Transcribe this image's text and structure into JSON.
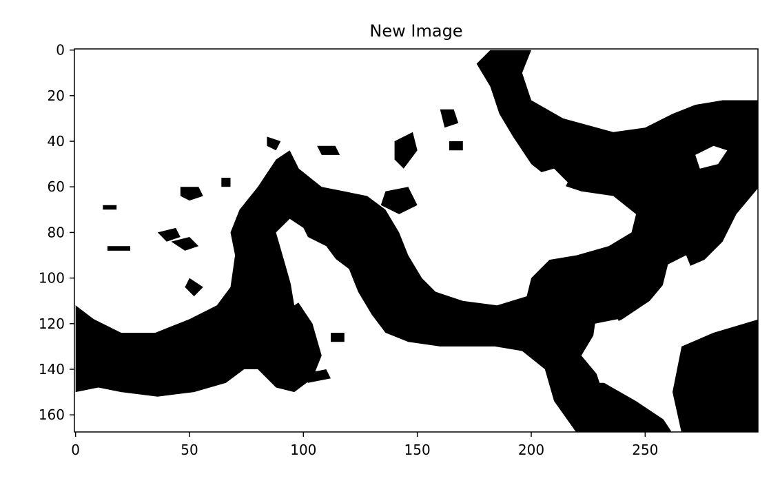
{
  "chart_data": {
    "type": "heatmap",
    "title": "New Image",
    "xlabel": "",
    "ylabel": "",
    "colormap": [
      "#000000",
      "#ffffff"
    ],
    "xlim": [
      -0.5,
      299.5
    ],
    "ylim": [
      167.5,
      -0.5
    ],
    "xticks": [
      0,
      50,
      100,
      150,
      200,
      250
    ],
    "yticks": [
      0,
      20,
      40,
      60,
      80,
      100,
      120,
      140,
      160
    ],
    "grid": false,
    "black_regions": [
      {
        "name": "left-lower-band",
        "points": [
          [
            0,
            112
          ],
          [
            8,
            118
          ],
          [
            20,
            124
          ],
          [
            35,
            124
          ],
          [
            50,
            118
          ],
          [
            62,
            112
          ],
          [
            68,
            104
          ],
          [
            70,
            90
          ],
          [
            68,
            80
          ],
          [
            72,
            70
          ],
          [
            80,
            60
          ],
          [
            88,
            48
          ],
          [
            94,
            44
          ],
          [
            98,
            52
          ],
          [
            108,
            60
          ],
          [
            118,
            62
          ],
          [
            128,
            64
          ],
          [
            136,
            70
          ],
          [
            142,
            80
          ],
          [
            146,
            90
          ],
          [
            152,
            100
          ],
          [
            158,
            106
          ],
          [
            170,
            110
          ],
          [
            185,
            112
          ],
          [
            198,
            108
          ],
          [
            200,
            100
          ],
          [
            208,
            92
          ],
          [
            220,
            90
          ],
          [
            234,
            86
          ],
          [
            244,
            80
          ],
          [
            246,
            72
          ],
          [
            236,
            64
          ],
          [
            222,
            62
          ],
          [
            210,
            58
          ],
          [
            200,
            50
          ],
          [
            192,
            38
          ],
          [
            186,
            28
          ],
          [
            182,
            16
          ],
          [
            176,
            6
          ],
          [
            182,
            0
          ],
          [
            200,
            0
          ],
          [
            196,
            10
          ],
          [
            200,
            22
          ],
          [
            214,
            30
          ],
          [
            236,
            36
          ],
          [
            250,
            34
          ],
          [
            262,
            28
          ],
          [
            272,
            24
          ],
          [
            284,
            22
          ],
          [
            300,
            22
          ],
          [
            300,
            60
          ],
          [
            290,
            72
          ],
          [
            284,
            84
          ],
          [
            276,
            92
          ],
          [
            262,
            98
          ],
          [
            252,
            110
          ],
          [
            240,
            118
          ],
          [
            228,
            124
          ],
          [
            222,
            134
          ],
          [
            232,
            146
          ],
          [
            246,
            154
          ],
          [
            258,
            162
          ],
          [
            262,
            168
          ],
          [
            220,
            168
          ],
          [
            210,
            154
          ],
          [
            206,
            140
          ],
          [
            196,
            132
          ],
          [
            184,
            130
          ],
          [
            172,
            130
          ],
          [
            160,
            130
          ],
          [
            146,
            128
          ],
          [
            136,
            124
          ],
          [
            130,
            116
          ],
          [
            124,
            106
          ],
          [
            120,
            96
          ],
          [
            112,
            90
          ],
          [
            104,
            86
          ],
          [
            100,
            78
          ],
          [
            94,
            74
          ],
          [
            88,
            80
          ],
          [
            92,
            94
          ],
          [
            96,
            108
          ],
          [
            104,
            120
          ],
          [
            108,
            134
          ],
          [
            104,
            144
          ],
          [
            96,
            150
          ],
          [
            88,
            148
          ],
          [
            80,
            140
          ],
          [
            74,
            140
          ],
          [
            66,
            146
          ],
          [
            52,
            150
          ],
          [
            36,
            152
          ],
          [
            20,
            150
          ],
          [
            10,
            148
          ],
          [
            0,
            150
          ]
        ]
      },
      {
        "name": "right-lower-block",
        "points": [
          [
            266,
            130
          ],
          [
            280,
            124
          ],
          [
            300,
            118
          ],
          [
            300,
            168
          ],
          [
            266,
            168
          ],
          [
            262,
            150
          ]
        ]
      },
      {
        "name": "spot-a",
        "points": [
          [
            46,
            60
          ],
          [
            54,
            60
          ],
          [
            56,
            64
          ],
          [
            50,
            66
          ],
          [
            46,
            64
          ]
        ]
      },
      {
        "name": "spot-b",
        "points": [
          [
            36,
            80
          ],
          [
            44,
            78
          ],
          [
            46,
            82
          ],
          [
            40,
            84
          ]
        ]
      },
      {
        "name": "spot-c",
        "points": [
          [
            42,
            84
          ],
          [
            50,
            82
          ],
          [
            54,
            86
          ],
          [
            48,
            88
          ]
        ]
      },
      {
        "name": "spot-d",
        "points": [
          [
            84,
            38
          ],
          [
            90,
            40
          ],
          [
            88,
            44
          ],
          [
            84,
            42
          ]
        ]
      },
      {
        "name": "spot-e",
        "points": [
          [
            106,
            42
          ],
          [
            114,
            42
          ],
          [
            116,
            46
          ],
          [
            108,
            46
          ]
        ]
      },
      {
        "name": "spot-f",
        "points": [
          [
            140,
            40
          ],
          [
            148,
            36
          ],
          [
            150,
            44
          ],
          [
            144,
            52
          ],
          [
            140,
            48
          ]
        ]
      },
      {
        "name": "spot-g",
        "points": [
          [
            136,
            62
          ],
          [
            146,
            60
          ],
          [
            150,
            68
          ],
          [
            142,
            72
          ],
          [
            134,
            68
          ]
        ]
      },
      {
        "name": "spot-h",
        "points": [
          [
            160,
            26
          ],
          [
            166,
            26
          ],
          [
            168,
            32
          ],
          [
            162,
            34
          ]
        ]
      },
      {
        "name": "spot-i",
        "points": [
          [
            164,
            40
          ],
          [
            170,
            40
          ],
          [
            170,
            44
          ],
          [
            164,
            44
          ]
        ]
      },
      {
        "name": "spot-j",
        "points": [
          [
            50,
            100
          ],
          [
            56,
            104
          ],
          [
            52,
            108
          ],
          [
            48,
            104
          ]
        ]
      },
      {
        "name": "spot-k",
        "points": [
          [
            100,
            142
          ],
          [
            110,
            140
          ],
          [
            112,
            144
          ],
          [
            102,
            146
          ]
        ]
      },
      {
        "name": "spot-l",
        "points": [
          [
            112,
            124
          ],
          [
            118,
            124
          ],
          [
            118,
            128
          ],
          [
            112,
            128
          ]
        ]
      },
      {
        "name": "spot-m",
        "points": [
          [
            64,
            56
          ],
          [
            68,
            56
          ],
          [
            68,
            60
          ],
          [
            64,
            60
          ]
        ]
      },
      {
        "name": "spot-n",
        "points": [
          [
            12,
            68
          ],
          [
            18,
            68
          ],
          [
            18,
            70
          ],
          [
            12,
            70
          ]
        ]
      },
      {
        "name": "spot-o",
        "points": [
          [
            14,
            86
          ],
          [
            24,
            86
          ],
          [
            24,
            88
          ],
          [
            14,
            88
          ]
        ]
      }
    ],
    "white_regions": [
      {
        "name": "top-right-island",
        "points": [
          [
            234,
            0
          ],
          [
            260,
            0
          ],
          [
            266,
            6
          ],
          [
            258,
            16
          ],
          [
            242,
            20
          ],
          [
            232,
            16
          ],
          [
            228,
            6
          ]
        ]
      },
      {
        "name": "right-small-island",
        "points": [
          [
            272,
            46
          ],
          [
            280,
            42
          ],
          [
            286,
            44
          ],
          [
            282,
            50
          ],
          [
            274,
            52
          ]
        ]
      },
      {
        "name": "middle-island",
        "points": [
          [
            196,
            56
          ],
          [
            210,
            52
          ],
          [
            216,
            58
          ],
          [
            212,
            66
          ],
          [
            200,
            68
          ],
          [
            194,
            62
          ]
        ]
      },
      {
        "name": "right-lower-island",
        "points": [
          [
            260,
            94
          ],
          [
            268,
            90
          ],
          [
            272,
            100
          ],
          [
            270,
            116
          ],
          [
            262,
            118
          ],
          [
            256,
            110
          ]
        ]
      },
      {
        "name": "far-right-island",
        "points": [
          [
            290,
            90
          ],
          [
            300,
            88
          ],
          [
            300,
            114
          ],
          [
            292,
            114
          ],
          [
            288,
            100
          ]
        ]
      },
      {
        "name": "lower-middle-island",
        "points": [
          [
            228,
            120
          ],
          [
            238,
            118
          ],
          [
            244,
            130
          ],
          [
            240,
            146
          ],
          [
            230,
            146
          ],
          [
            226,
            134
          ]
        ]
      },
      {
        "name": "inner-loop-island",
        "points": [
          [
            88,
            80
          ],
          [
            96,
            76
          ],
          [
            102,
            82
          ],
          [
            110,
            86
          ],
          [
            116,
            94
          ],
          [
            108,
            100
          ],
          [
            102,
            108
          ],
          [
            96,
            112
          ],
          [
            94,
            100
          ]
        ]
      }
    ]
  }
}
